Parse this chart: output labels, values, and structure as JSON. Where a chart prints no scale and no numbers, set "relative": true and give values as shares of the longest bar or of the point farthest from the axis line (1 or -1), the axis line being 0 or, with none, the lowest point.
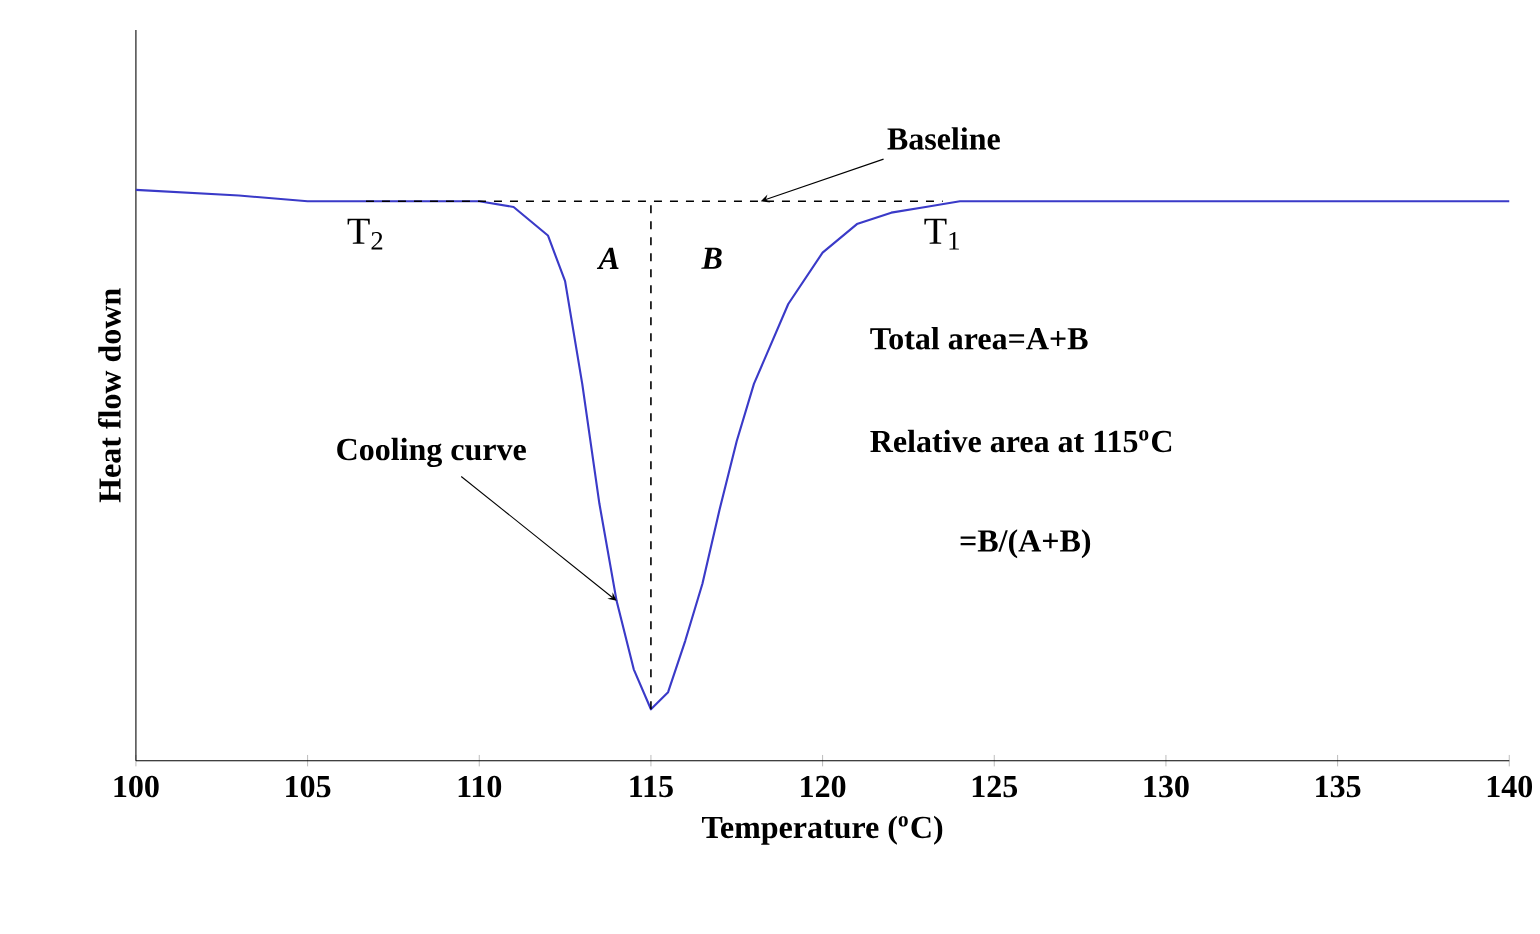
{
  "chart_data": {
    "type": "line",
    "relative": true,
    "xlabel": "Temperature ($^{o}$C)",
    "ylabel": "Heat flow down",
    "xlim": [
      100,
      140
    ],
    "xticks": [
      100,
      105,
      110,
      115,
      120,
      125,
      130,
      135,
      140
    ],
    "series": [
      {
        "color": "#3a3ac8",
        "line_style": "solid",
        "x": [
          100,
          103,
          105,
          107,
          110,
          111,
          112,
          112.5,
          113,
          113.5,
          114,
          114.5,
          115,
          115.5,
          116,
          116.5,
          117,
          117.5,
          118,
          119,
          120,
          121,
          122,
          123,
          124,
          130,
          140
        ],
        "values": [
          1.0,
          0.99,
          0.98,
          0.98,
          0.98,
          0.97,
          0.92,
          0.84,
          0.66,
          0.45,
          0.28,
          0.16,
          0.09,
          0.12,
          0.21,
          0.31,
          0.44,
          0.56,
          0.66,
          0.8,
          0.89,
          0.94,
          0.96,
          0.97,
          0.98,
          0.98,
          0.98
        ]
      },
      {
        "color": "#000000",
        "line_style": "dashed",
        "x": [
          106.7,
          123.5
        ],
        "values": [
          0.98,
          0.98
        ]
      },
      {
        "color": "#000000",
        "line_style": "dashed",
        "x": [
          115,
          115
        ],
        "values": [
          0.09,
          0.98
        ]
      }
    ],
    "annotations": [
      {
        "text": "Baseline",
        "x": 118.2,
        "y": 0.98
      },
      {
        "text": "T$_{2}$",
        "x": 106.7,
        "y": 0.98
      },
      {
        "text": "T$_{1}$",
        "x": 123.5,
        "y": 0.98
      },
      {
        "text": "Cooling curve",
        "x": 114,
        "y": 0.28
      },
      "*A*",
      "*B*",
      "Total area=A+B",
      "Relative area at 115$^{o}$C",
      "=B/(A+B)"
    ]
  }
}
